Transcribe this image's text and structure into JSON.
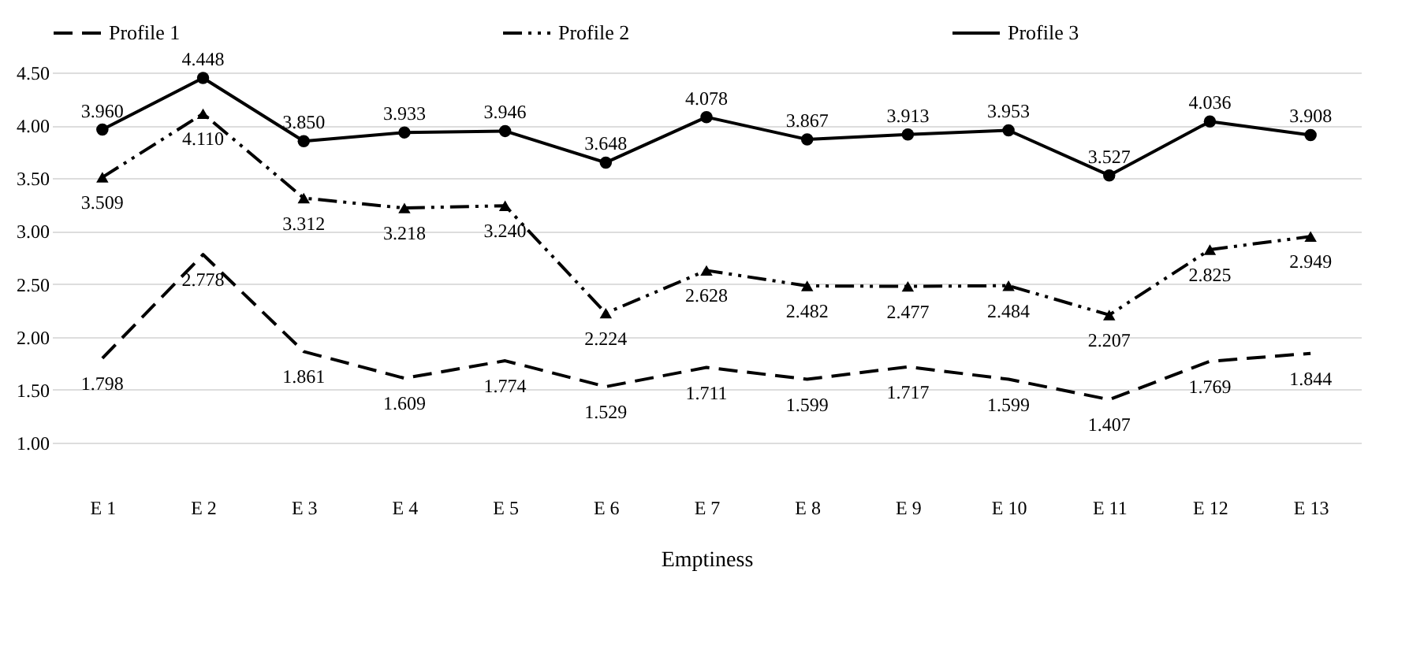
{
  "chart_data": {
    "type": "line",
    "xlabel": "Emptiness",
    "categories": [
      "E 1",
      "E 2",
      "E 3",
      "E 4",
      "E 5",
      "E 6",
      "E 7",
      "E 8",
      "E 9",
      "E 10",
      "E 11",
      "E 12",
      "E 13"
    ],
    "series": [
      {
        "name": "Profile 1",
        "color": "#000000",
        "line_style": "dashed",
        "marker": "none",
        "values": [
          1.798,
          2.778,
          1.861,
          1.609,
          1.774,
          1.529,
          1.711,
          1.599,
          1.717,
          1.599,
          1.407,
          1.769,
          1.844
        ],
        "value_labels": [
          "1.798",
          "2.778",
          "1.861",
          "1.609",
          "1.774",
          "1.529",
          "1.711",
          "1.599",
          "1.717",
          "1.599",
          "1.407",
          "1.769",
          "1.844"
        ]
      },
      {
        "name": "Profile 2",
        "color": "#000000",
        "line_style": "dashdot",
        "marker": "triangle",
        "values": [
          3.509,
          4.11,
          3.312,
          3.218,
          3.24,
          2.224,
          2.628,
          2.482,
          2.477,
          2.484,
          2.207,
          2.825,
          2.949
        ],
        "value_labels": [
          "3.509",
          "4.110",
          "3.312",
          "3.218",
          "3.240",
          "2.224",
          "2.628",
          "2.482",
          "2.477",
          "2.484",
          "2.207",
          "2.825",
          "2.949"
        ]
      },
      {
        "name": "Profile 3",
        "color": "#000000",
        "line_style": "solid",
        "marker": "circle",
        "values": [
          3.96,
          4.448,
          3.85,
          3.933,
          3.946,
          3.648,
          4.078,
          3.867,
          3.913,
          3.953,
          3.527,
          4.036,
          3.908
        ],
        "value_labels": [
          "3.960",
          "4.448",
          "3.850",
          "3.933",
          "3.946",
          "3.648",
          "4.078",
          "3.867",
          "3.913",
          "3.953",
          "3.527",
          "4.036",
          "3.908"
        ]
      }
    ],
    "ylim": [
      1.0,
      4.5
    ],
    "yticks": [
      {
        "value": 1,
        "label": "1.00"
      },
      {
        "value": 1.5,
        "label": "1.50"
      },
      {
        "value": 2,
        "label": "2.00"
      },
      {
        "value": 2.5,
        "label": "2.50"
      },
      {
        "value": 3,
        "label": "3.00"
      },
      {
        "value": 3.5,
        "label": "3.50"
      },
      {
        "value": 4,
        "label": "4.00"
      },
      {
        "value": 4.5,
        "label": "4.50"
      }
    ],
    "grid": "y",
    "legend": "top"
  }
}
